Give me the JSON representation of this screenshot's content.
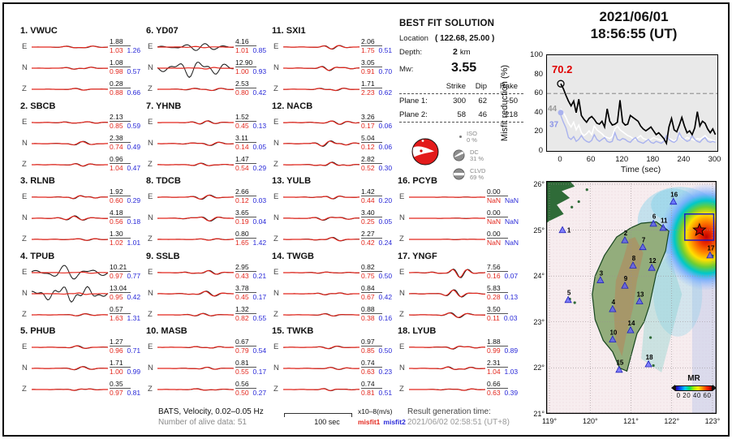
{
  "header": {
    "date": "2021/06/01",
    "time": "18:56:55  (UT)"
  },
  "solution": {
    "title": "BEST FIT SOLUTION",
    "location_label": "Location",
    "location_value": "( 122.68,  25.00 )",
    "depth_label": "Depth:",
    "depth_value": "2",
    "depth_unit": "km",
    "mw_label": "Mw:",
    "mw_value": "3.55",
    "table": {
      "headers": [
        "Strike",
        "Dip",
        "Rake"
      ],
      "rows": [
        {
          "label": "Plane 1:",
          "strike": "300",
          "dip": "62",
          "rake": "-50"
        },
        {
          "label": "Plane 2:",
          "strike": "58",
          "dip": "46",
          "rake": "218"
        }
      ]
    },
    "decomposition": [
      {
        "name": "ISO",
        "pct": "0 %"
      },
      {
        "name": "DC",
        "pct": "31 %"
      },
      {
        "name": "CLVD",
        "pct": "69 %"
      }
    ]
  },
  "stations": [
    {
      "num": "1.",
      "code": "VWUC",
      "rows": [
        {
          "comp": "E",
          "amp": "1.88",
          "m1": "1.03",
          "m2": "1.26"
        },
        {
          "comp": "N",
          "amp": "1.08",
          "m1": "0.98",
          "m2": "0.57"
        },
        {
          "comp": "Z",
          "amp": "0.28",
          "m1": "0.88",
          "m2": "0.66"
        }
      ]
    },
    {
      "num": "2.",
      "code": "SBCB",
      "rows": [
        {
          "comp": "E",
          "amp": "2.13",
          "m1": "0.85",
          "m2": "0.59"
        },
        {
          "comp": "N",
          "amp": "2.38",
          "m1": "0.74",
          "m2": "0.49"
        },
        {
          "comp": "Z",
          "amp": "0.96",
          "m1": "1.04",
          "m2": "0.47"
        }
      ]
    },
    {
      "num": "3.",
      "code": "RLNB",
      "rows": [
        {
          "comp": "E",
          "amp": "1.92",
          "m1": "0.60",
          "m2": "0.29"
        },
        {
          "comp": "N",
          "amp": "4.18",
          "m1": "0.56",
          "m2": "0.18"
        },
        {
          "comp": "Z",
          "amp": "1.30",
          "m1": "1.02",
          "m2": "1.01"
        }
      ]
    },
    {
      "num": "4.",
      "code": "TPUB",
      "rows": [
        {
          "comp": "E",
          "amp": "10.21",
          "m1": "0.97",
          "m2": "0.77",
          "mismatch": true
        },
        {
          "comp": "N",
          "amp": "13.04",
          "m1": "0.95",
          "m2": "0.42",
          "mismatch": true
        },
        {
          "comp": "Z",
          "amp": "0.57",
          "m1": "1.63",
          "m2": "1.31"
        }
      ]
    },
    {
      "num": "5.",
      "code": "PHUB",
      "rows": [
        {
          "comp": "E",
          "amp": "1.27",
          "m1": "0.96",
          "m2": "0.71"
        },
        {
          "comp": "N",
          "amp": "1.71",
          "m1": "1.00",
          "m2": "0.99"
        },
        {
          "comp": "Z",
          "amp": "0.35",
          "m1": "0.97",
          "m2": "0.81"
        }
      ]
    },
    {
      "num": "6.",
      "code": "YD07",
      "rows": [
        {
          "comp": "E",
          "amp": "4.16",
          "m1": "1.01",
          "m2": "0.85",
          "mismatch": true
        },
        {
          "comp": "N",
          "amp": "12.90",
          "m1": "1.00",
          "m2": "0.93",
          "mismatch": true
        },
        {
          "comp": "Z",
          "amp": "2.53",
          "m1": "0.80",
          "m2": "0.42"
        }
      ]
    },
    {
      "num": "7.",
      "code": "YHNB",
      "rows": [
        {
          "comp": "E",
          "amp": "1.52",
          "m1": "0.45",
          "m2": "0.13"
        },
        {
          "comp": "N",
          "amp": "3.11",
          "m1": "0.14",
          "m2": "0.05"
        },
        {
          "comp": "Z",
          "amp": "1.47",
          "m1": "0.54",
          "m2": "0.29"
        }
      ]
    },
    {
      "num": "8.",
      "code": "TDCB",
      "rows": [
        {
          "comp": "E",
          "amp": "2.66",
          "m1": "0.12",
          "m2": "0.03"
        },
        {
          "comp": "N",
          "amp": "3.65",
          "m1": "0.19",
          "m2": "0.04"
        },
        {
          "comp": "Z",
          "amp": "0.80",
          "m1": "1.65",
          "m2": "1.42"
        }
      ]
    },
    {
      "num": "9.",
      "code": "SSLB",
      "rows": [
        {
          "comp": "E",
          "amp": "2.95",
          "m1": "0.43",
          "m2": "0.21"
        },
        {
          "comp": "N",
          "amp": "3.78",
          "m1": "0.45",
          "m2": "0.17"
        },
        {
          "comp": "Z",
          "amp": "1.32",
          "m1": "0.82",
          "m2": "0.55"
        }
      ]
    },
    {
      "num": "10.",
      "code": "MASB",
      "rows": [
        {
          "comp": "E",
          "amp": "0.67",
          "m1": "0.79",
          "m2": "0.54"
        },
        {
          "comp": "N",
          "amp": "0.81",
          "m1": "0.55",
          "m2": "0.17"
        },
        {
          "comp": "Z",
          "amp": "0.56",
          "m1": "0.50",
          "m2": "0.27"
        }
      ]
    },
    {
      "num": "11.",
      "code": "SXI1",
      "rows": [
        {
          "comp": "E",
          "amp": "2.06",
          "m1": "1.75",
          "m2": "0.51"
        },
        {
          "comp": "N",
          "amp": "3.05",
          "m1": "0.91",
          "m2": "0.70"
        },
        {
          "comp": "Z",
          "amp": "1.71",
          "m1": "2.23",
          "m2": "0.62"
        }
      ]
    },
    {
      "num": "12.",
      "code": "NACB",
      "rows": [
        {
          "comp": "E",
          "amp": "3.26",
          "m1": "0.17",
          "m2": "0.06"
        },
        {
          "comp": "N",
          "amp": "5.04",
          "m1": "0.12",
          "m2": "0.06"
        },
        {
          "comp": "Z",
          "amp": "2.82",
          "m1": "0.52",
          "m2": "0.30"
        }
      ]
    },
    {
      "num": "13.",
      "code": "YULB",
      "rows": [
        {
          "comp": "E",
          "amp": "1.42",
          "m1": "0.44",
          "m2": "0.20"
        },
        {
          "comp": "N",
          "amp": "3.40",
          "m1": "0.25",
          "m2": "0.05"
        },
        {
          "comp": "Z",
          "amp": "2.27",
          "m1": "0.42",
          "m2": "0.24"
        }
      ]
    },
    {
      "num": "14.",
      "code": "TWGB",
      "rows": [
        {
          "comp": "E",
          "amp": "0.82",
          "m1": "0.75",
          "m2": "0.50"
        },
        {
          "comp": "N",
          "amp": "0.84",
          "m1": "0.67",
          "m2": "0.42"
        },
        {
          "comp": "Z",
          "amp": "0.88",
          "m1": "0.38",
          "m2": "0.16"
        }
      ]
    },
    {
      "num": "15.",
      "code": "TWKB",
      "rows": [
        {
          "comp": "E",
          "amp": "0.97",
          "m1": "0.85",
          "m2": "0.50"
        },
        {
          "comp": "N",
          "amp": "0.74",
          "m1": "0.63",
          "m2": "0.23"
        },
        {
          "comp": "Z",
          "amp": "0.74",
          "m1": "0.81",
          "m2": "0.51"
        }
      ]
    },
    {
      "num": "16.",
      "code": "PCYB",
      "rows": [
        {
          "comp": "E",
          "amp": "0.00",
          "m1": "NaN",
          "m2": "NaN"
        },
        {
          "comp": "N",
          "amp": "0.00",
          "m1": "NaN",
          "m2": "NaN"
        },
        {
          "comp": "Z",
          "amp": "0.00",
          "m1": "NaN",
          "m2": "NaN"
        }
      ]
    },
    {
      "num": "17.",
      "code": "YNGF",
      "rows": [
        {
          "comp": "E",
          "amp": "7.56",
          "m1": "0.16",
          "m2": "0.07"
        },
        {
          "comp": "N",
          "amp": "5.83",
          "m1": "0.28",
          "m2": "0.13"
        },
        {
          "comp": "Z",
          "amp": "3.50",
          "m1": "0.11",
          "m2": "0.03"
        }
      ]
    },
    {
      "num": "18.",
      "code": "LYUB",
      "rows": [
        {
          "comp": "E",
          "amp": "1.88",
          "m1": "0.99",
          "m2": "0.89"
        },
        {
          "comp": "N",
          "amp": "2.31",
          "m1": "1.04",
          "m2": "1.03"
        },
        {
          "comp": "Z",
          "amp": "0.66",
          "m1": "0.63",
          "m2": "0.39"
        }
      ]
    }
  ],
  "chart_data": {
    "type": "line",
    "title": "",
    "xlabel": "Time (sec)",
    "ylabel": "Misfit reduction (%)",
    "xlim": [
      0,
      300
    ],
    "ylim": [
      0,
      100
    ],
    "xticks": [
      0,
      60,
      120,
      180,
      240,
      300
    ],
    "yticks": [
      0,
      20,
      40,
      60,
      80,
      100
    ],
    "grid": false,
    "dashed_line_y": 60,
    "x_step": 5,
    "annotations": [
      {
        "text": "70.2",
        "color": "#e00000"
      },
      {
        "text": "44",
        "color": "#999999"
      },
      {
        "text": "37",
        "color": "#8a93e8"
      }
    ],
    "series": [
      {
        "name": "best-solution",
        "color": "#000000",
        "marker": "open-circle",
        "values": [
          70.2,
          65,
          58,
          52,
          47,
          52,
          40,
          54,
          37,
          33,
          30,
          34,
          36,
          33,
          29,
          28,
          31,
          25,
          44,
          31,
          27,
          28,
          30,
          53,
          30,
          27,
          28,
          37,
          35,
          33,
          31,
          26,
          23,
          21,
          23,
          25,
          21,
          17,
          19,
          16,
          13,
          8,
          25,
          34,
          22,
          20,
          27,
          35,
          26,
          19,
          21,
          17,
          24,
          41,
          26,
          31,
          29,
          23,
          19,
          23,
          17
        ]
      },
      {
        "name": "second",
        "color": "#ffffff",
        "marker": "none",
        "values": [
          44,
          40,
          35,
          29,
          25,
          30,
          22,
          27,
          19,
          16,
          18,
          21,
          17,
          26,
          22,
          20,
          18,
          15,
          14,
          13,
          15,
          23,
          26,
          22,
          20,
          18,
          16,
          15,
          13,
          12,
          14,
          16,
          13,
          12,
          11,
          12,
          14,
          13,
          12,
          11,
          10,
          12,
          13,
          12,
          10,
          12,
          16,
          13,
          12,
          14,
          13,
          12,
          11,
          13,
          12,
          14,
          16,
          13,
          12,
          11,
          10
        ]
      },
      {
        "name": "third",
        "color": "#a9b2ee",
        "marker": "filled-circle",
        "values": [
          37,
          30,
          24,
          14,
          12,
          15,
          10,
          12,
          16,
          12,
          10,
          9,
          11,
          17,
          12,
          10,
          12,
          14,
          10,
          9,
          10,
          19,
          12,
          11,
          13,
          12,
          10,
          9,
          12,
          14,
          10,
          9,
          8,
          10,
          12,
          9,
          8,
          10,
          9,
          8,
          10,
          16,
          12,
          10,
          9,
          11,
          19,
          14,
          12,
          10,
          11,
          16,
          12,
          10,
          9,
          12,
          14,
          10,
          9,
          10,
          9
        ]
      }
    ]
  },
  "map": {
    "lon_ticks": [
      "119°",
      "120°",
      "121°",
      "122°",
      "123°"
    ],
    "lat_ticks": [
      "26°",
      "25°",
      "24°",
      "23°",
      "22°",
      "21°"
    ],
    "legend": {
      "title": "MR",
      "tick_labels": "0 20 40 60"
    },
    "epicenter": {
      "lon": 122.68,
      "lat": 25.0
    },
    "stations": [
      {
        "num": "1",
        "lon": 119.32,
        "lat": 25.0
      },
      {
        "num": "2",
        "lon": 120.85,
        "lat": 24.78
      },
      {
        "num": "3",
        "lon": 120.25,
        "lat": 23.91
      },
      {
        "num": "4",
        "lon": 120.55,
        "lat": 23.28
      },
      {
        "num": "5",
        "lon": 119.46,
        "lat": 23.48
      },
      {
        "num": "6",
        "lon": 121.55,
        "lat": 25.14
      },
      {
        "num": "7",
        "lon": 121.29,
        "lat": 24.63
      },
      {
        "num": "8",
        "lon": 121.05,
        "lat": 24.23
      },
      {
        "num": "9",
        "lon": 120.85,
        "lat": 23.79
      },
      {
        "num": "10",
        "lon": 120.55,
        "lat": 22.62
      },
      {
        "num": "11",
        "lon": 121.79,
        "lat": 25.05
      },
      {
        "num": "12",
        "lon": 121.51,
        "lat": 24.18
      },
      {
        "num": "13",
        "lon": 121.21,
        "lat": 23.45
      },
      {
        "num": "14",
        "lon": 120.99,
        "lat": 22.82
      },
      {
        "num": "15",
        "lon": 120.71,
        "lat": 21.96
      },
      {
        "num": "16",
        "lon": 122.04,
        "lat": 25.62
      },
      {
        "num": "17",
        "lon": 122.94,
        "lat": 24.45
      },
      {
        "num": "18",
        "lon": 121.43,
        "lat": 22.08
      }
    ]
  },
  "footer": {
    "line1": "BATS, Velocity, 0.02–0.05 Hz",
    "line2": "Number of alive data: 51",
    "scalebar_label": "100 sec",
    "units_label": "x10–8(m/s)",
    "misfit1_label": "misfit1",
    "misfit2_label": "misfit2",
    "result_label": "Result generation time:",
    "result_value": "2021/06/02 02:58:51 (UT+8)"
  },
  "colors": {
    "misfit1": "#e3261c",
    "misfit2": "#2929d8",
    "trace_observed": "#1a1a1a",
    "trace_synthetic": "#e3261c",
    "map_marker": "#5a5aff",
    "epicenter_star": "#c00000"
  }
}
